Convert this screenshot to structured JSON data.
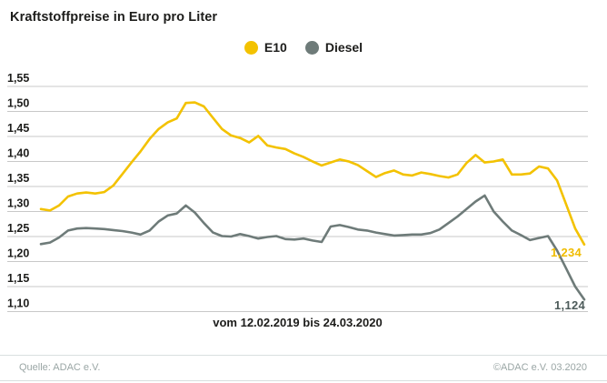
{
  "chart_data": {
    "type": "line",
    "title": "Kraftstoffpreise in Euro pro Liter",
    "x_axis_label": "vom 12.02.2019 bis 24.03.2020",
    "ylabel": "",
    "xlabel": "",
    "ylim": [
      1.1,
      1.55
    ],
    "y_tick_step": 0.05,
    "y_tick_labels": [
      "1,55",
      "1,50",
      "1,45",
      "1,40",
      "1,35",
      "1,30",
      "1,25",
      "1,20",
      "1,15",
      "1,10"
    ],
    "grid": true,
    "legend_position": "top-center",
    "gridline_color": "#c8c8c8",
    "series": [
      {
        "name": "E10",
        "color": "#f3c200",
        "end_label": "1,234",
        "end_label_color": "#f0bc00",
        "values": [
          1.305,
          1.302,
          1.312,
          1.33,
          1.336,
          1.338,
          1.336,
          1.339,
          1.352,
          1.375,
          1.398,
          1.42,
          1.445,
          1.465,
          1.478,
          1.486,
          1.517,
          1.518,
          1.51,
          1.487,
          1.465,
          1.452,
          1.447,
          1.438,
          1.451,
          1.432,
          1.428,
          1.425,
          1.416,
          1.409,
          1.4,
          1.392,
          1.398,
          1.404,
          1.4,
          1.393,
          1.381,
          1.369,
          1.377,
          1.382,
          1.374,
          1.372,
          1.378,
          1.375,
          1.371,
          1.368,
          1.374,
          1.397,
          1.413,
          1.398,
          1.4,
          1.404,
          1.374,
          1.374,
          1.376,
          1.39,
          1.386,
          1.362,
          1.314,
          1.266,
          1.234
        ]
      },
      {
        "name": "Diesel",
        "color": "#6e7b79",
        "end_label": "1,124",
        "end_label_color": "#4d5b5a",
        "values": [
          1.235,
          1.238,
          1.248,
          1.262,
          1.266,
          1.267,
          1.266,
          1.265,
          1.263,
          1.261,
          1.258,
          1.254,
          1.262,
          1.28,
          1.292,
          1.296,
          1.312,
          1.298,
          1.277,
          1.258,
          1.251,
          1.25,
          1.255,
          1.251,
          1.246,
          1.249,
          1.251,
          1.245,
          1.244,
          1.246,
          1.242,
          1.239,
          1.27,
          1.273,
          1.269,
          1.264,
          1.262,
          1.258,
          1.255,
          1.252,
          1.253,
          1.254,
          1.254,
          1.257,
          1.264,
          1.277,
          1.29,
          1.305,
          1.32,
          1.332,
          1.3,
          1.28,
          1.262,
          1.253,
          1.243,
          1.247,
          1.251,
          1.222,
          1.186,
          1.15,
          1.124
        ]
      }
    ]
  },
  "footer": {
    "source_left": "Quelle: ADAC e.V.",
    "source_right": "©ADAC e.V.  03.2020"
  }
}
